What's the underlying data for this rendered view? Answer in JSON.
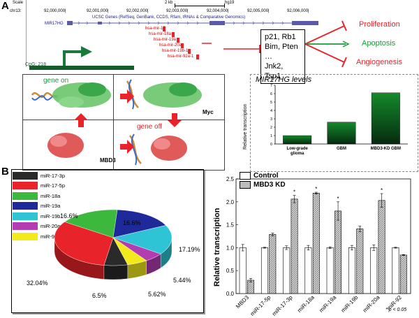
{
  "panel_a": {
    "letter": "A",
    "browser": {
      "scale_label": "Scale",
      "chr_label": "chr13:",
      "scalebar_label": "2 kb",
      "assembly": "hg19",
      "coords": [
        "92,000,000|",
        "92,001,000|",
        "92,002,000|",
        "92,003,000|",
        "92,004,000|",
        "92,005,000|",
        "92,006,000|"
      ],
      "track_title": "UCSC Genes (RefSeq, GenBank, CCDS, Rfam, tRNAs & Comparative Genomics)",
      "gene_name": "MIR17HG",
      "mirnas": [
        "hsa-mir-17",
        "hsa-mir-18a",
        "hsa-mir-19a",
        "hsa-mir-20a",
        "hsa-mir-19b-1",
        "hsa-mir-92a-1"
      ],
      "cpg_label": "CpG: 218"
    },
    "targets": [
      "p21, Rb1",
      "Bim, Pten …",
      "Jnk2, Tsp1"
    ],
    "outcomes": [
      "Proliferation",
      "Apoptosis",
      "Angiogenesis"
    ],
    "colors": {
      "red": "#e8242a",
      "green": "#1a9a3a",
      "darkgreen": "#145c2a"
    },
    "model": {
      "gene_on": "gene on",
      "gene_off": "gene off",
      "myc": "Myc",
      "mbd3": "MBD3"
    },
    "levels_chart": {
      "title": "MIR17HG levels",
      "ylabel": "Relative transcription"
    }
  },
  "panel_b": {
    "letter": "B",
    "pie_legend": [
      "miR-17-3p",
      "miR-17-5p",
      "miR-18a",
      "miR-19a",
      "miR-19b",
      "miR-20a",
      "miR-92"
    ],
    "bar_legend": [
      "Control",
      "MBD3 KD"
    ],
    "ylabel": "Relative transcription",
    "pvalue_note": "* p < 0.05"
  },
  "chart_data": [
    {
      "type": "bar",
      "title": "MIR17HG levels",
      "ylabel": "Relative transcription",
      "categories": [
        "Low-grade glioma",
        "GBM",
        "MBD3-KD GBM"
      ],
      "values": [
        1.0,
        2.6,
        6.1
      ],
      "ylim": [
        0,
        7
      ],
      "yticks": [
        0,
        1,
        2,
        3,
        4,
        5,
        6,
        7
      ]
    },
    {
      "type": "pie",
      "labels": [
        "miR-17-3p",
        "miR-17-5p",
        "miR-18a",
        "miR-19a",
        "miR-19b",
        "miR-20a",
        "miR-92"
      ],
      "values": [
        6.5,
        32.04,
        16.6,
        16.6,
        17.19,
        5.44,
        5.62
      ],
      "value_labels": [
        "6.5%",
        "32.04%",
        "16.6%",
        "16.6%",
        "17.19%",
        "5.44%",
        "5.62%"
      ],
      "colors": [
        "#2a2a2a",
        "#e8242a",
        "#3cb83c",
        "#1f2a9a",
        "#2ec4d6",
        "#b23cb0",
        "#f2ea1a"
      ]
    },
    {
      "type": "bar",
      "ylabel": "Relative transcription",
      "categories": [
        "MBD3",
        "miR-17-5p",
        "miR-17-3p",
        "miR-18a",
        "miR-19a",
        "miR-19b",
        "miR-20a",
        "miR-92"
      ],
      "series": [
        {
          "name": "Control",
          "values": [
            1.0,
            1.0,
            1.0,
            1.0,
            1.0,
            1.0,
            1.0,
            1.0
          ],
          "errors": [
            0.07,
            0.01,
            0.04,
            0.05,
            0.02,
            0.05,
            0.06,
            0.01
          ]
        },
        {
          "name": "MBD3 KD",
          "values": [
            0.29,
            1.29,
            2.06,
            2.19,
            1.8,
            1.41,
            2.03,
            0.84
          ],
          "errors": [
            0.04,
            0.03,
            0.08,
            0.02,
            0.2,
            0.06,
            0.15,
            0.01
          ]
        }
      ],
      "significant": [
        false,
        false,
        true,
        true,
        true,
        false,
        true,
        false
      ],
      "ylim": [
        0,
        2.5
      ],
      "yticks": [
        0.0,
        0.5,
        1.0,
        1.5,
        2.0,
        2.5
      ]
    }
  ]
}
